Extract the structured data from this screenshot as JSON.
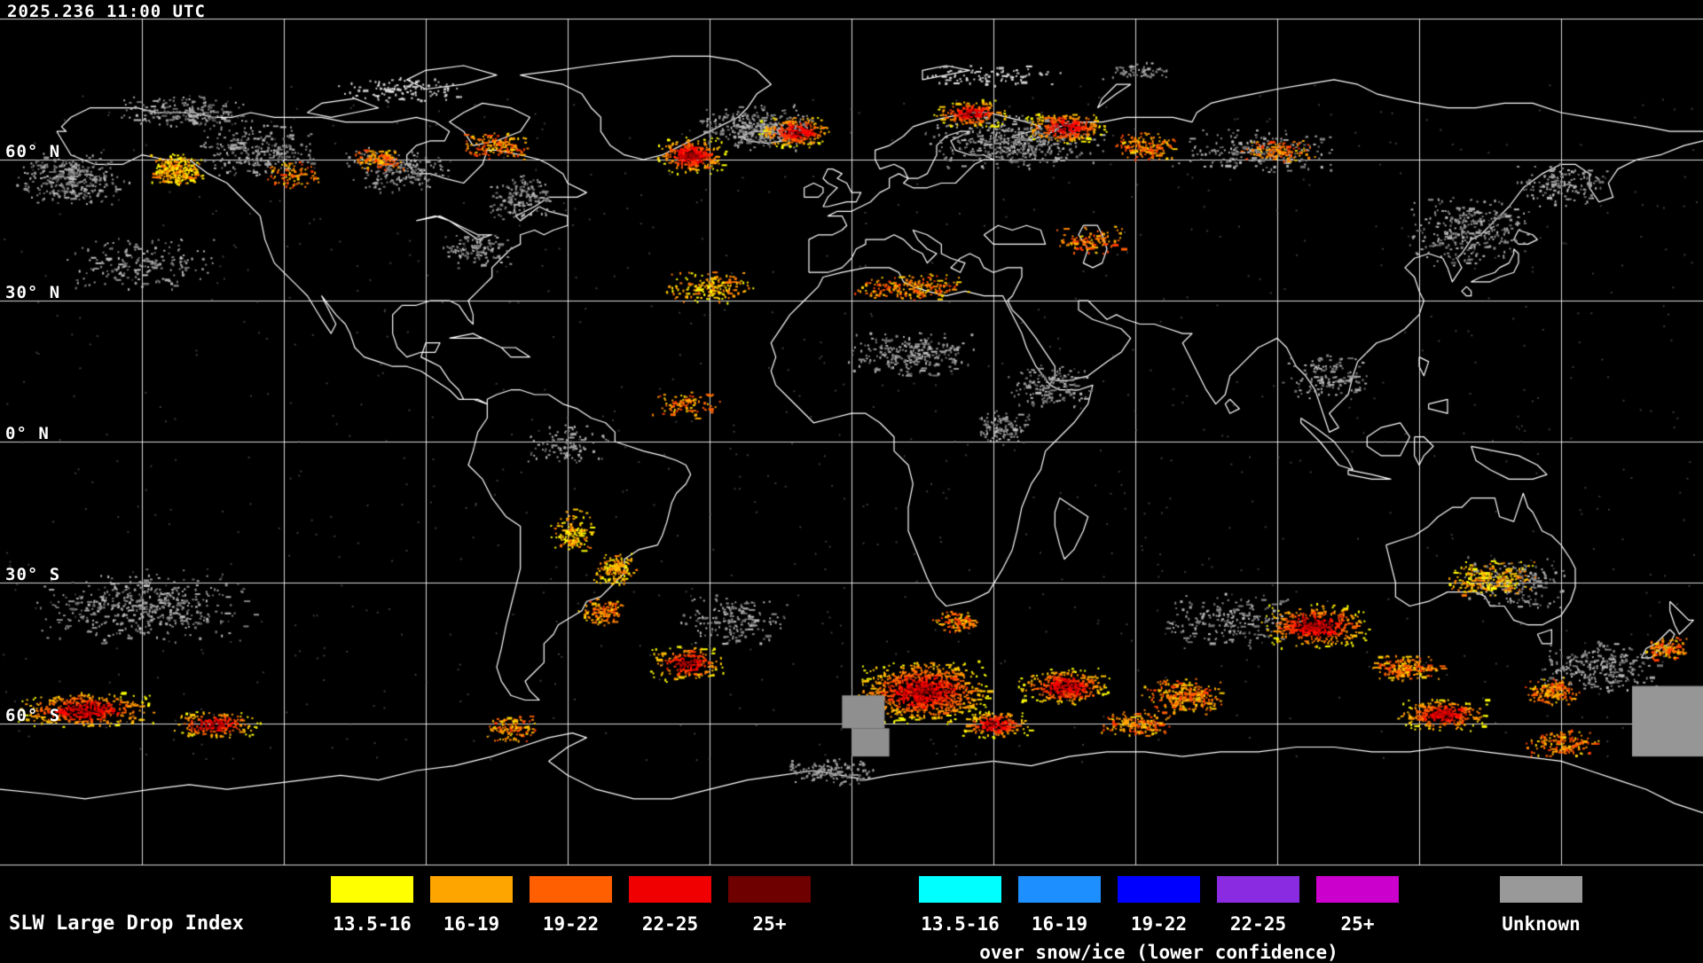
{
  "header": {
    "timestamp": "2025.236 11:00 UTC"
  },
  "map": {
    "projection": "equirectangular",
    "grid": {
      "lon_step_deg": 30,
      "lat_step_deg": 30,
      "color": "#ffffff"
    },
    "lat_labels": [
      {
        "label": "60° N",
        "lat": 60
      },
      {
        "label": "30° N",
        "lat": 30
      },
      {
        "label": "0° N",
        "lat": 0
      },
      {
        "label": "30° S",
        "lat": -30
      },
      {
        "label": "60° S",
        "lat": -60
      }
    ]
  },
  "legend": {
    "title": "SLW Large Drop Index",
    "primary": [
      {
        "label": "13.5-16",
        "color": "#ffff00"
      },
      {
        "label": "16-19",
        "color": "#ffa500"
      },
      {
        "label": "19-22",
        "color": "#ff5f00"
      },
      {
        "label": "22-25",
        "color": "#f00000"
      },
      {
        "label": "25+",
        "color": "#6e0000"
      }
    ],
    "snow_ice": [
      {
        "label": "13.5-16",
        "color": "#00ffff"
      },
      {
        "label": "16-19",
        "color": "#1e8fff"
      },
      {
        "label": "19-22",
        "color": "#0000ff"
      },
      {
        "label": "22-25",
        "color": "#8a2be2"
      },
      {
        "label": "25+",
        "color": "#cc00cc"
      }
    ],
    "snow_ice_caption": "over snow/ice (lower confidence)",
    "unknown": {
      "label": "Unknown",
      "color": "#999999"
    }
  },
  "palettes": {
    "yo": [
      "#ffff00",
      "#ffe600",
      "#ffc800",
      "#ffa000",
      "#ff7800"
    ],
    "orange": [
      "#ffd200",
      "#ffa500",
      "#ff8200",
      "#ff5f00",
      "#ff3c00"
    ],
    "hot": [
      "#ffff00",
      "#ffc800",
      "#ff9600",
      "#ff6400",
      "#ff3200",
      "#ff0000",
      "#c80000",
      "#820000"
    ],
    "gray": [
      "#6e6e6e",
      "#828282",
      "#969696",
      "#aaaaaa",
      "#bebebe"
    ],
    "ice": [
      "#d2d2d2",
      "#c0c0c0",
      "#e6e6e6"
    ]
  },
  "hotspots_format": "[lon_deg, lat_deg, rx_deg, ry_deg, count, palette]",
  "hotspots": [
    [
      -165,
      56,
      13,
      6,
      320,
      "gray"
    ],
    [
      -150,
      38,
      18,
      6,
      200,
      "gray"
    ],
    [
      -126,
      62,
      13,
      6,
      260,
      "gray"
    ],
    [
      -96,
      58,
      12,
      5,
      200,
      "gray"
    ],
    [
      -70,
      52,
      8,
      5,
      160,
      "gray"
    ],
    [
      -79,
      41,
      8,
      4,
      120,
      "gray"
    ],
    [
      -20,
      67,
      13,
      5,
      380,
      "gray"
    ],
    [
      35,
      64,
      20,
      6,
      480,
      "gray"
    ],
    [
      85,
      62,
      18,
      5,
      220,
      "gray"
    ],
    [
      130,
      45,
      14,
      8,
      320,
      "gray"
    ],
    [
      150,
      55,
      10,
      5,
      160,
      "gray"
    ],
    [
      12,
      19,
      14,
      5,
      260,
      "gray"
    ],
    [
      42,
      12,
      10,
      5,
      150,
      "gray"
    ],
    [
      32,
      3,
      6,
      4,
      120,
      "gray"
    ],
    [
      100,
      14,
      10,
      5,
      140,
      "gray"
    ],
    [
      -140,
      70,
      15,
      4,
      200,
      "gray"
    ],
    [
      -150,
      -35,
      24,
      8,
      480,
      "gray"
    ],
    [
      -25,
      -38,
      12,
      6,
      180,
      "gray"
    ],
    [
      80,
      -38,
      15,
      6,
      220,
      "gray"
    ],
    [
      158,
      -48,
      14,
      6,
      280,
      "gray"
    ],
    [
      140,
      -30,
      12,
      6,
      200,
      "gray"
    ],
    [
      -60,
      0,
      10,
      5,
      110,
      "gray"
    ],
    [
      176,
      -58,
      5,
      5,
      140,
      "gray"
    ],
    [
      -5,
      -70,
      10,
      3,
      160,
      "gray"
    ],
    [
      60,
      79,
      8,
      2,
      60,
      "gray"
    ],
    [
      -95,
      75,
      15,
      3,
      110,
      "ice"
    ],
    [
      30,
      78,
      15,
      2.5,
      90,
      "ice"
    ],
    [
      -143,
      58,
      6,
      3.5,
      260,
      "yo"
    ],
    [
      -118,
      57,
      6,
      3,
      90,
      "orange"
    ],
    [
      -100,
      60,
      6,
      2.5,
      100,
      "orange"
    ],
    [
      -75,
      63,
      8,
      3,
      150,
      "orange"
    ],
    [
      -34,
      61,
      8,
      4,
      320,
      "hot"
    ],
    [
      -12,
      66,
      8,
      3.5,
      240,
      "hot"
    ],
    [
      25,
      70,
      8,
      3,
      200,
      "hot"
    ],
    [
      45,
      67,
      9,
      3.5,
      260,
      "hot"
    ],
    [
      62,
      63,
      7,
      3,
      150,
      "orange"
    ],
    [
      90,
      62,
      8,
      2.5,
      120,
      "orange"
    ],
    [
      -30,
      33,
      10,
      3.5,
      180,
      "yo"
    ],
    [
      12,
      33,
      13,
      3,
      200,
      "orange"
    ],
    [
      50,
      43,
      8,
      3,
      120,
      "orange"
    ],
    [
      -35,
      8,
      8,
      3,
      90,
      "orange"
    ],
    [
      -59,
      -19,
      5,
      5,
      150,
      "yo"
    ],
    [
      -50,
      -27,
      5,
      3.5,
      160,
      "yo"
    ],
    [
      -53,
      -36,
      5,
      3,
      130,
      "orange"
    ],
    [
      -35,
      -47,
      8,
      4,
      200,
      "hot"
    ],
    [
      15,
      -53,
      15,
      7,
      900,
      "hot"
    ],
    [
      45,
      -52,
      10,
      4,
      350,
      "hot"
    ],
    [
      30,
      -60,
      8,
      3,
      200,
      "hot"
    ],
    [
      70,
      -54,
      9,
      4,
      260,
      "orange"
    ],
    [
      60,
      -60,
      8,
      3,
      160,
      "orange"
    ],
    [
      98,
      -39,
      12,
      5,
      420,
      "hot"
    ],
    [
      117,
      -48,
      8,
      3,
      200,
      "orange"
    ],
    [
      125,
      -58,
      10,
      3.5,
      280,
      "hot"
    ],
    [
      148,
      -53,
      6,
      3,
      160,
      "orange"
    ],
    [
      172,
      -44,
      5,
      2.5,
      120,
      "orange"
    ],
    [
      135,
      -29,
      10,
      4,
      220,
      "yo"
    ],
    [
      -162,
      -57,
      16,
      4,
      420,
      "hot"
    ],
    [
      -135,
      -60,
      10,
      3,
      200,
      "hot"
    ],
    [
      22,
      -38,
      5,
      2.5,
      110,
      "orange"
    ],
    [
      -72,
      -61,
      6,
      3,
      120,
      "orange"
    ],
    [
      150,
      -64,
      8,
      3,
      150,
      "orange"
    ]
  ],
  "solid_patches_format": "[lon_west, lat_north, lon_east, lat_south, color]",
  "solid_patches": [
    [
      165,
      -52,
      180,
      -67,
      "#969696"
    ],
    [
      -2,
      -54,
      7,
      -61,
      "#8f8f8f"
    ],
    [
      0,
      -61,
      8,
      -67,
      "#8f8f8f"
    ]
  ],
  "background_speckle": {
    "n": 1000,
    "color": "#6e6e6e"
  }
}
